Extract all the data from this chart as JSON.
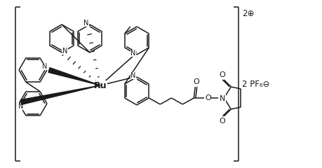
{
  "background_color": "#ffffff",
  "line_color": "#1a1a1a",
  "line_width": 1.1,
  "bracket_charge": "2⊕",
  "counter_ion": "2 PF₆⊖",
  "ru_label": "Ru",
  "fig_width": 4.59,
  "fig_height": 2.4,
  "dpi": 100
}
